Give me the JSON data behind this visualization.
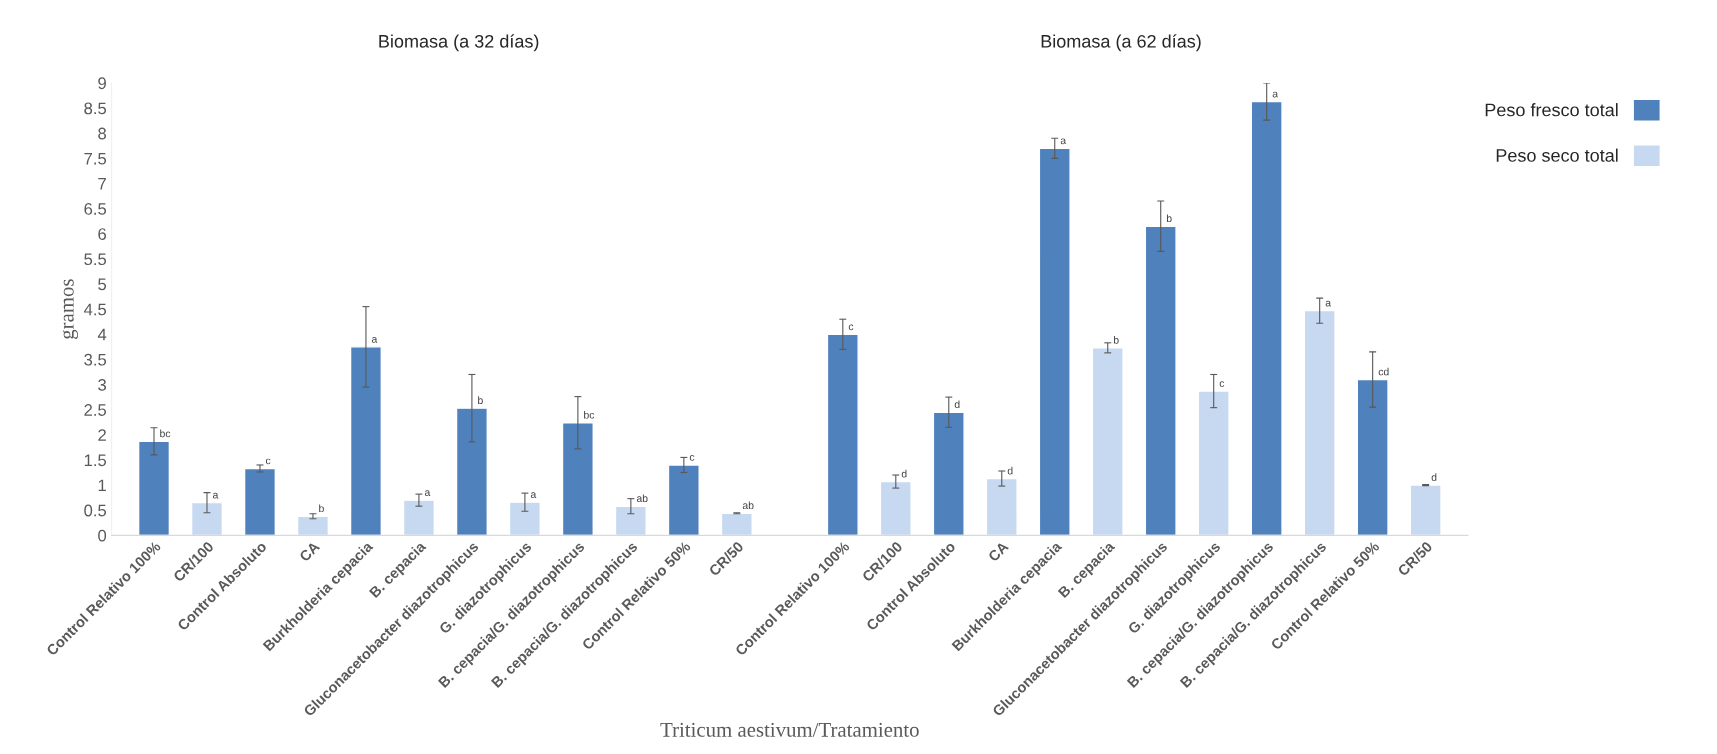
{
  "chart_data": {
    "type": "bar",
    "ylabel": "gramos",
    "xlabel": "Triticum aestivum/Tratamiento",
    "annotations": [
      "Biomasa (a 32 días)",
      "Biomasa (a 62 días)"
    ],
    "categories": [
      "Control Relativo 100%",
      "CR/100",
      "Control Absoluto",
      "CA",
      "Burkholderia cepacia",
      "B. cepacia",
      "Gluconacetobacter diazotrophicus",
      "G. diazotrophicus",
      "B. cepacia/G. diazotrophicus",
      "B. cepacia/G. diazotrophicus",
      "Control Relativo 50%",
      "CR/50",
      null,
      "Control Relativo 100%",
      "CR/100",
      "Control Absoluto",
      "CA",
      "Burkholderia cepacia",
      "B. cepacia",
      "Gluconacetobacter diazotrophicus",
      "G. diazotrophicus",
      "B. cepacia/G. diazotrophicus",
      "B. cepacia/G. diazotrophicus",
      "Control Relativo 50%",
      "CR/50"
    ],
    "series": [
      {
        "name": "Peso fresco total",
        "color": "#4f81bd",
        "values": [
          1.87,
          null,
          1.33,
          null,
          3.75,
          null,
          2.53,
          null,
          2.24,
          null,
          1.4,
          null,
          null,
          4.0,
          null,
          2.45,
          null,
          7.7,
          null,
          6.15,
          null,
          8.63,
          null,
          3.1,
          null
        ],
        "errors": [
          0.27,
          null,
          0.07,
          null,
          0.8,
          null,
          0.67,
          null,
          0.52,
          null,
          0.15,
          null,
          null,
          0.3,
          null,
          0.3,
          null,
          0.2,
          null,
          0.5,
          null,
          0.37,
          null,
          0.55,
          null
        ],
        "value_labels": [
          "bc",
          null,
          "c",
          null,
          "a",
          null,
          "b",
          null,
          "bc",
          null,
          "c",
          null,
          null,
          "c",
          null,
          "d",
          null,
          "a",
          null,
          "b",
          null,
          "a",
          null,
          "cd",
          null
        ]
      },
      {
        "name": "Peso seco total",
        "color": "#c6d9f1",
        "values": [
          null,
          0.65,
          null,
          0.38,
          null,
          0.7,
          null,
          0.66,
          null,
          0.58,
          null,
          0.44,
          null,
          null,
          1.07,
          null,
          1.13,
          null,
          3.73,
          null,
          2.87,
          null,
          4.47,
          null,
          1.0
        ],
        "errors": [
          null,
          0.2,
          null,
          0.05,
          null,
          0.12,
          null,
          0.18,
          null,
          0.15,
          null,
          0.01,
          null,
          null,
          0.13,
          null,
          0.15,
          null,
          0.1,
          null,
          0.33,
          null,
          0.25,
          null,
          0.01
        ],
        "value_labels": [
          null,
          "a",
          null,
          "b",
          null,
          "a",
          null,
          "a",
          null,
          "ab",
          null,
          "ab",
          null,
          null,
          "d",
          null,
          "d",
          null,
          "b",
          null,
          "c",
          null,
          "a",
          null,
          "d"
        ]
      }
    ],
    "ylim": [
      0,
      9
    ],
    "yticks": [
      0,
      0.5,
      1,
      1.5,
      2,
      2.5,
      3,
      3.5,
      4,
      4.5,
      5,
      5.5,
      6,
      6.5,
      7,
      7.5,
      8,
      8.5,
      9
    ],
    "legend": "top right"
  }
}
